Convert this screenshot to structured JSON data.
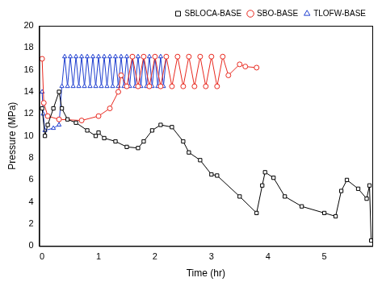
{
  "chart_data": {
    "type": "line",
    "x_label": "Time (hr)",
    "y_label": "Pressure (MPa)",
    "xlim": [
      -0.05,
      5.85
    ],
    "xticks": [
      0,
      1,
      2,
      3,
      4,
      5
    ],
    "ylim": [
      0,
      20
    ],
    "yticks": [
      0,
      2,
      4,
      6,
      8,
      10,
      12,
      14,
      16,
      18,
      20
    ],
    "grid": false,
    "legend": "top-right",
    "series": [
      {
        "name": "SBLOCA-BASE",
        "color": "#000000",
        "marker": "square",
        "x": [
          0,
          0.05,
          0.1,
          0.2,
          0.3,
          0.35,
          0.45,
          0.6,
          0.8,
          0.95,
          1.0,
          1.1,
          1.3,
          1.5,
          1.7,
          1.8,
          1.95,
          2.1,
          2.3,
          2.5,
          2.6,
          2.8,
          3.0,
          3.1,
          3.5,
          3.8,
          3.9,
          3.95,
          4.1,
          4.3,
          4.6,
          5.0,
          5.2,
          5.3,
          5.4,
          5.6,
          5.75,
          5.8,
          5.83
        ],
        "values": [
          12.5,
          10.0,
          11.0,
          12.5,
          14.0,
          12.5,
          11.5,
          11.2,
          10.5,
          10.0,
          10.3,
          9.8,
          9.5,
          9.0,
          8.9,
          9.5,
          10.5,
          11.0,
          10.8,
          9.5,
          8.5,
          7.8,
          6.5,
          6.4,
          4.5,
          3.0,
          5.5,
          6.7,
          6.2,
          4.5,
          3.6,
          3.0,
          2.7,
          5.0,
          6.0,
          5.2,
          4.3,
          5.5,
          0.5
        ]
      },
      {
        "name": "SBO-BASE",
        "color": "#e8281e",
        "marker": "circle",
        "x": [
          0,
          0.03,
          0.1,
          0.3,
          0.7,
          1.0,
          1.2,
          1.35,
          1.4,
          1.5,
          1.6,
          1.7,
          1.8,
          1.9,
          2.0,
          2.1,
          2.2,
          2.3,
          2.4,
          2.5,
          2.6,
          2.7,
          2.8,
          2.9,
          3.0,
          3.1,
          3.2,
          3.3,
          3.5,
          3.6,
          3.8
        ],
        "values": [
          17.0,
          13.0,
          11.8,
          11.5,
          11.4,
          11.8,
          12.5,
          14.0,
          15.5,
          14.5,
          17.2,
          14.5,
          17.2,
          14.5,
          17.2,
          14.5,
          17.2,
          14.5,
          17.2,
          14.5,
          17.2,
          14.5,
          17.2,
          14.5,
          17.2,
          14.5,
          17.2,
          15.5,
          16.5,
          16.3,
          16.2
        ]
      },
      {
        "name": "TLOFW-BASE",
        "color": "#1f3fd0",
        "marker": "triangle",
        "x": [
          0,
          0.02,
          0.05,
          0.2,
          0.3,
          0.35,
          0.4,
          0.45,
          0.5,
          0.55,
          0.6,
          0.65,
          0.7,
          0.75,
          0.8,
          0.85,
          0.9,
          0.95,
          1.0,
          1.05,
          1.1,
          1.15,
          1.2,
          1.25,
          1.3,
          1.35,
          1.4,
          1.45,
          1.5,
          1.55,
          1.6,
          1.65,
          1.7,
          1.75,
          1.8,
          1.85,
          1.9,
          1.95,
          2.0,
          2.05,
          2.1,
          2.15,
          2.2
        ],
        "values": [
          14.0,
          12.0,
          10.5,
          10.7,
          11.0,
          14.5,
          17.2,
          14.5,
          17.2,
          14.5,
          17.2,
          14.5,
          17.2,
          14.5,
          17.2,
          14.5,
          17.2,
          14.5,
          17.2,
          14.5,
          17.2,
          14.5,
          17.2,
          14.5,
          17.2,
          14.5,
          17.2,
          14.5,
          17.2,
          14.5,
          17.2,
          14.5,
          17.2,
          14.5,
          17.2,
          14.5,
          17.2,
          14.5,
          17.2,
          14.5,
          17.2,
          14.5,
          17.2
        ]
      }
    ]
  }
}
